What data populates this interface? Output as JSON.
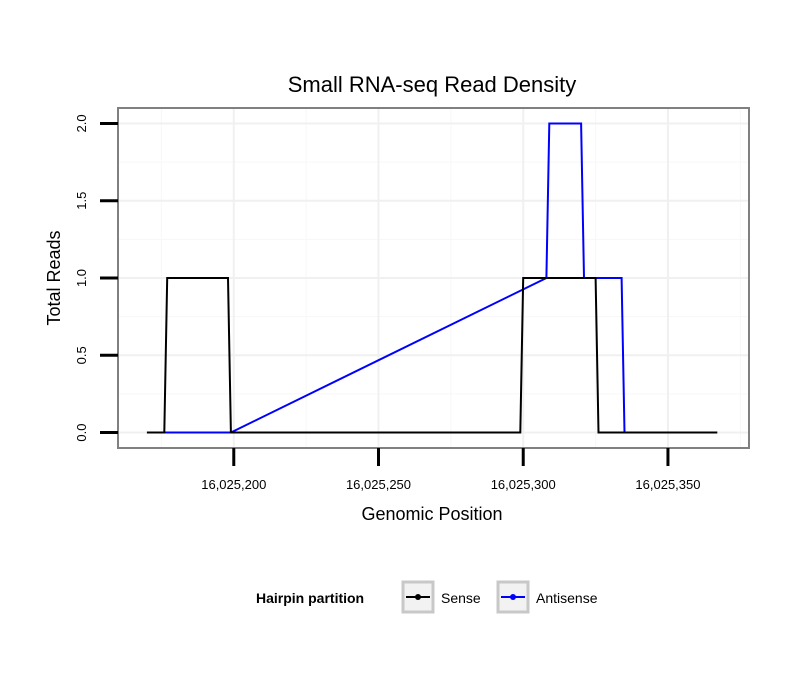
{
  "chart_data": {
    "type": "line",
    "title": "Small RNA-seq Read Density",
    "xlabel": "Genomic Position",
    "ylabel": "Total Reads",
    "xlim": [
      16025160,
      16025378
    ],
    "ylim": [
      -0.1,
      2.1
    ],
    "x_ticks": [
      16025200,
      16025250,
      16025300,
      16025350
    ],
    "x_tick_labels": [
      "16,025,200",
      "16,025,250",
      "16,025,300",
      "16,025,350"
    ],
    "y_ticks": [
      0.0,
      0.5,
      1.0,
      1.5,
      2.0
    ],
    "y_tick_labels": [
      "0.0",
      "0.5",
      "1.0",
      "1.5",
      "2.0"
    ],
    "grid": true,
    "legend": {
      "title": "Hairpin partition",
      "position": "bottom",
      "entries": [
        "Sense",
        "Antisense"
      ]
    },
    "series": [
      {
        "name": "Sense",
        "color": "#000000",
        "x": [
          16025170,
          16025176,
          16025177,
          16025198,
          16025199,
          16025299,
          16025300,
          16025325,
          16025326,
          16025367
        ],
        "y": [
          0,
          0,
          1,
          1,
          0,
          0,
          1,
          1,
          0,
          0
        ]
      },
      {
        "name": "Antisense",
        "color": "#0000ff",
        "x": [
          16025176,
          16025199,
          16025308,
          16025309,
          16025320,
          16025321,
          16025334,
          16025335,
          16025367
        ],
        "y": [
          0,
          0,
          1,
          2,
          2,
          1,
          1,
          0,
          0
        ]
      }
    ]
  }
}
